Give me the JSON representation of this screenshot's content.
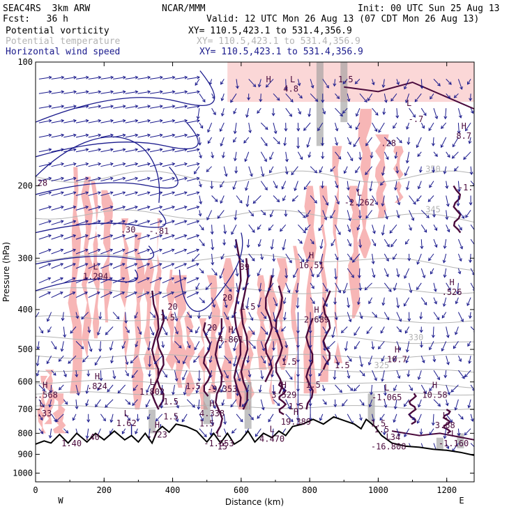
{
  "header": {
    "model": "SEAC4RS  3km ARW",
    "center": "NCAR/MMM",
    "init": "Init: 00 UTC Sun 25 Aug 13",
    "fcst": "Fcst:   36 h",
    "valid": "Valid: 12 UTC Mon 26 Aug 13 (07 CDT Mon 26 Aug 13)"
  },
  "legend": [
    {
      "label": "Potential vorticity",
      "xy": "XY= 110.5,423.1 to 531.4,356.9",
      "color": "#000000"
    },
    {
      "label": "Potential temperature",
      "xy": "XY= 110.5,423.1 to 531.4,356.9",
      "color": "#b4b4b4"
    },
    {
      "label": "Horizontal wind speed",
      "xy": "XY= 110.5,423.1 to 531.4,356.9",
      "color": "#1a1a8c"
    }
  ],
  "colors": {
    "pv_fill": "#f7b6b6",
    "pv_contour": "#4a0a3c",
    "theta": "#b4b4b4",
    "wind": "#1a1a8c",
    "terrain": "#000000"
  },
  "chart_data": {
    "type": "contour",
    "xlabel": "Distance (km)",
    "ylabel": "Pressure (hPa)",
    "xlim": [
      0,
      1280
    ],
    "ylim": [
      100,
      1050
    ],
    "y_log_scale": true,
    "y_inverted": true,
    "x_ticks": [
      "0",
      "200",
      "400",
      "600",
      "800",
      "1000",
      "1200"
    ],
    "y_ticks": [
      "100",
      "200",
      "300",
      "400",
      "500",
      "600",
      "700",
      "800",
      "900",
      "1000"
    ],
    "x_end_labels": {
      "left": "W",
      "right": "E"
    },
    "terrain_pressure": [
      {
        "x": 0,
        "p": 850
      },
      {
        "x": 25,
        "p": 835
      },
      {
        "x": 45,
        "p": 845
      },
      {
        "x": 70,
        "p": 805
      },
      {
        "x": 95,
        "p": 845
      },
      {
        "x": 120,
        "p": 800
      },
      {
        "x": 150,
        "p": 840
      },
      {
        "x": 175,
        "p": 800
      },
      {
        "x": 200,
        "p": 830
      },
      {
        "x": 230,
        "p": 790
      },
      {
        "x": 260,
        "p": 830
      },
      {
        "x": 280,
        "p": 810
      },
      {
        "x": 300,
        "p": 840
      },
      {
        "x": 320,
        "p": 800
      },
      {
        "x": 340,
        "p": 845
      },
      {
        "x": 355,
        "p": 790
      },
      {
        "x": 370,
        "p": 770
      },
      {
        "x": 390,
        "p": 795
      },
      {
        "x": 410,
        "p": 760
      },
      {
        "x": 440,
        "p": 770
      },
      {
        "x": 470,
        "p": 790
      },
      {
        "x": 500,
        "p": 840
      },
      {
        "x": 520,
        "p": 800
      },
      {
        "x": 540,
        "p": 845
      },
      {
        "x": 560,
        "p": 800
      },
      {
        "x": 580,
        "p": 850
      },
      {
        "x": 600,
        "p": 830
      },
      {
        "x": 620,
        "p": 790
      },
      {
        "x": 640,
        "p": 840
      },
      {
        "x": 665,
        "p": 800
      },
      {
        "x": 690,
        "p": 820
      },
      {
        "x": 710,
        "p": 790
      },
      {
        "x": 730,
        "p": 810
      },
      {
        "x": 750,
        "p": 770
      },
      {
        "x": 780,
        "p": 760
      },
      {
        "x": 810,
        "p": 740
      },
      {
        "x": 840,
        "p": 760
      },
      {
        "x": 870,
        "p": 730
      },
      {
        "x": 900,
        "p": 745
      },
      {
        "x": 930,
        "p": 760
      },
      {
        "x": 950,
        "p": 780
      },
      {
        "x": 965,
        "p": 740
      },
      {
        "x": 990,
        "p": 770
      },
      {
        "x": 1010,
        "p": 810
      },
      {
        "x": 1040,
        "p": 845
      },
      {
        "x": 1080,
        "p": 860
      },
      {
        "x": 1120,
        "p": 865
      },
      {
        "x": 1160,
        "p": 875
      },
      {
        "x": 1200,
        "p": 880
      },
      {
        "x": 1240,
        "p": 890
      },
      {
        "x": 1280,
        "p": 905
      }
    ],
    "theta_contours": [
      {
        "label": "350",
        "x": 1160,
        "p": 185
      },
      {
        "label": "345",
        "x": 1160,
        "p": 232
      },
      {
        "label": "330",
        "x": 1110,
        "p": 475
      },
      {
        "label": "325",
        "x": 1010,
        "p": 555
      }
    ],
    "pv_extrema": [
      {
        "kind": "H",
        "value": "",
        "x": 680,
        "p": 112
      },
      {
        "kind": "L",
        "value": "",
        "x": 750,
        "p": 112
      },
      {
        "kind": "",
        "value": "1.5",
        "x": 905,
        "p": 112
      },
      {
        "kind": "",
        "value": "4.8",
        "x": 745,
        "p": 118
      },
      {
        "kind": "L",
        "value": "",
        "x": 1090,
        "p": 128
      },
      {
        "kind": "",
        "value": "-.7",
        "x": 1110,
        "p": 140
      },
      {
        "kind": "H",
        "value": "8.7",
        "x": 1250,
        "p": 150
      },
      {
        "kind": "",
        "value": ".28",
        "x": 1030,
        "p": 160
      },
      {
        "kind": "",
        "value": "-1.",
        "x": 1255,
        "p": 205
      },
      {
        "kind": "L",
        "value": "-2.262",
        "x": 945,
        "p": 218
      },
      {
        "kind": "",
        "value": "28",
        "x": 20,
        "p": 200
      },
      {
        "kind": "",
        "value": ".30",
        "x": 270,
        "p": 260
      },
      {
        "kind": "",
        "value": "-.81",
        "x": 360,
        "p": 262
      },
      {
        "kind": "L",
        "value": "1.294",
        "x": 175,
        "p": 330
      },
      {
        "kind": "H",
        "value": "16.51",
        "x": 805,
        "p": 310
      },
      {
        "kind": "",
        "value": "39",
        "x": 610,
        "p": 320
      },
      {
        "kind": "H",
        "value": ".526",
        "x": 1215,
        "p": 360
      },
      {
        "kind": "",
        "value": "20",
        "x": 400,
        "p": 400
      },
      {
        "kind": "",
        "value": "20",
        "x": 560,
        "p": 380
      },
      {
        "kind": "",
        "value": "1.5",
        "x": 620,
        "p": 400
      },
      {
        "kind": "",
        "value": "1.5",
        "x": 385,
        "p": 425
      },
      {
        "kind": "H",
        "value": "2.689",
        "x": 820,
        "p": 420
      },
      {
        "kind": "",
        "value": "20",
        "x": 515,
        "p": 450
      },
      {
        "kind": "H",
        "value": "4.861",
        "x": 570,
        "p": 470
      },
      {
        "kind": "",
        "value": "1.5",
        "x": 740,
        "p": 545
      },
      {
        "kind": "",
        "value": "1.5",
        "x": 895,
        "p": 555
      },
      {
        "kind": "H",
        "value": "10.7",
        "x": 1055,
        "p": 525
      },
      {
        "kind": "H",
        "value": ".824",
        "x": 180,
        "p": 610
      },
      {
        "kind": "L",
        "value": "1.802",
        "x": 340,
        "p": 630
      },
      {
        "kind": "L",
        "value": "-9.353",
        "x": 545,
        "p": 620
      },
      {
        "kind": "",
        "value": "1.5",
        "x": 460,
        "p": 625
      },
      {
        "kind": "H",
        "value": "3.529",
        "x": 725,
        "p": 640
      },
      {
        "kind": "",
        "value": "1.5",
        "x": 810,
        "p": 620
      },
      {
        "kind": "L",
        "value": "-1.065",
        "x": 1025,
        "p": 650
      },
      {
        "kind": "H",
        "value": "10.58",
        "x": 1165,
        "p": 640
      },
      {
        "kind": "H",
        "value": "1.568",
        "x": 28,
        "p": 640
      },
      {
        "kind": "",
        "value": "1.5",
        "x": 395,
        "p": 680
      },
      {
        "kind": "H",
        "value": "4.338",
        "x": 515,
        "p": 710
      },
      {
        "kind": "L",
        "value": "1.33",
        "x": 18,
        "p": 710
      },
      {
        "kind": "",
        "value": "1.5",
        "x": 395,
        "p": 740
      },
      {
        "kind": "H",
        "value": "19.389",
        "x": 760,
        "p": 745
      },
      {
        "kind": "",
        "value": "1.5",
        "x": 760,
        "p": 700
      },
      {
        "kind": "L",
        "value": "1.62",
        "x": 265,
        "p": 750
      },
      {
        "kind": "L",
        "value": "3.68",
        "x": 1195,
        "p": 760
      },
      {
        "kind": "",
        "value": "1.5",
        "x": 500,
        "p": 770
      },
      {
        "kind": "",
        "value": "1.5",
        "x": 1000,
        "p": 770
      },
      {
        "kind": "H",
        "value": ".723",
        "x": 355,
        "p": 800
      },
      {
        "kind": "",
        "value": "1.5",
        "x": 1010,
        "p": 795
      },
      {
        "kind": "L",
        "value": "4.470",
        "x": 690,
        "p": 820
      },
      {
        "kind": "",
        "value": ".40",
        "x": 165,
        "p": 830
      },
      {
        "kind": "",
        "value": "34",
        "x": 1050,
        "p": 830
      },
      {
        "kind": "L",
        "value": "-1.160",
        "x": 1220,
        "p": 840
      },
      {
        "kind": "L",
        "value": "-1.653",
        "x": 535,
        "p": 840
      },
      {
        "kind": "",
        "value": "1.40",
        "x": 105,
        "p": 860
      },
      {
        "kind": "L",
        "value": "-16.808",
        "x": 1030,
        "p": 855
      },
      {
        "kind": "",
        "value": "15",
        "x": 545,
        "p": 875
      }
    ]
  }
}
